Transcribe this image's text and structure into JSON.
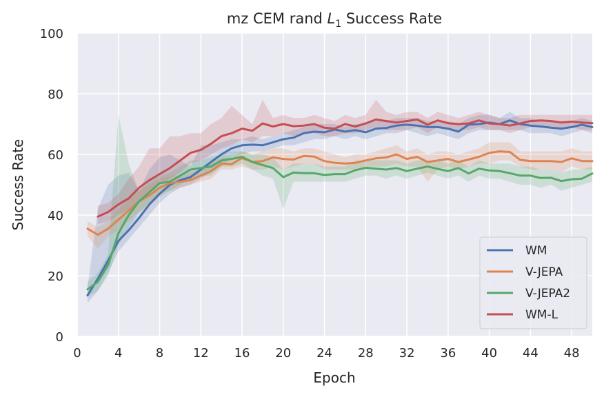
{
  "chart_data": {
    "type": "line",
    "title": "mz CEM rand L1 Success Rate",
    "title_parts": {
      "prefix": "mz CEM rand ",
      "var": "L",
      "sub": "1",
      "suffix": " Success Rate"
    },
    "xlabel": "Epoch",
    "ylabel": "Success Rate",
    "xlim": [
      0,
      50
    ],
    "ylim": [
      0,
      100
    ],
    "xticks": [
      0,
      4,
      8,
      12,
      16,
      20,
      24,
      28,
      32,
      36,
      40,
      44,
      48
    ],
    "xtick_labels": [
      "0",
      "4",
      "8",
      "12",
      "16",
      "20",
      "24",
      "28",
      "32",
      "36",
      "40",
      "44",
      "48"
    ],
    "yticks": [
      0,
      20,
      40,
      60,
      80,
      100
    ],
    "ytick_labels": [
      "0",
      "20",
      "40",
      "60",
      "80",
      "100"
    ],
    "grid": true,
    "background": "#eaeaf2",
    "legend_position": "bottom-right",
    "series": [
      {
        "name": "WM",
        "color": "#4c72b0",
        "x": [
          1,
          2,
          3,
          4,
          5,
          6,
          7,
          8,
          9,
          10,
          11,
          12,
          13,
          14,
          15,
          16,
          17,
          18,
          19,
          20,
          21,
          22,
          23,
          24,
          25,
          26,
          27,
          28,
          29,
          30,
          31,
          32,
          33,
          34,
          35,
          36,
          37,
          38,
          39,
          40,
          41,
          42,
          43,
          44,
          45,
          46,
          47,
          48,
          49,
          50
        ],
        "y": [
          13.5,
          19,
          25,
          31.5,
          35,
          39,
          43.5,
          47,
          50,
          51.5,
          52.5,
          55,
          57.5,
          60,
          62,
          63,
          63.2,
          63,
          64,
          65,
          65.5,
          67,
          67.5,
          67.3,
          68.2,
          67.5,
          68,
          67.3,
          68.5,
          68.7,
          69.5,
          69.8,
          69.5,
          69,
          69,
          68.5,
          67.5,
          69.8,
          70,
          70.5,
          70,
          71.2,
          70,
          69.5,
          69.2,
          68.8,
          68.5,
          69,
          69.8,
          69
        ],
        "band_lo": [
          11,
          15,
          21,
          28,
          32,
          36,
          40,
          44,
          47,
          49,
          50,
          52,
          54,
          56,
          59,
          60,
          61,
          61,
          62,
          63,
          63,
          64,
          65,
          65,
          66,
          65,
          66,
          65,
          66,
          67,
          67,
          68,
          67,
          66,
          67,
          66,
          65,
          67,
          68,
          68,
          68,
          68,
          68,
          67,
          67,
          67,
          66,
          67,
          68,
          67
        ],
        "band_hi": [
          16,
          42,
          50,
          53,
          54,
          48,
          55,
          59,
          60,
          58,
          56,
          63,
          63,
          64,
          65,
          65,
          66,
          65,
          66,
          67,
          68,
          69,
          70,
          70,
          70,
          69,
          70,
          70,
          71,
          71,
          72,
          72,
          72,
          71,
          71,
          71,
          70,
          72,
          73,
          73,
          72,
          74,
          72,
          72,
          71,
          71,
          71,
          71,
          72,
          71
        ]
      },
      {
        "name": "V-JEPA",
        "color": "#dd8452",
        "x": [
          1,
          2,
          3,
          4,
          5,
          6,
          7,
          8,
          9,
          10,
          11,
          12,
          13,
          14,
          15,
          16,
          17,
          18,
          19,
          20,
          21,
          22,
          23,
          24,
          25,
          26,
          27,
          28,
          29,
          30,
          31,
          32,
          33,
          34,
          35,
          36,
          37,
          38,
          39,
          40,
          41,
          42,
          43,
          44,
          45,
          46,
          47,
          48,
          49,
          50
        ],
        "y": [
          35.5,
          33.5,
          35.5,
          38.5,
          41.5,
          44.5,
          46.5,
          49,
          50.5,
          51,
          51.5,
          53,
          54.5,
          57,
          56.8,
          58.8,
          57.5,
          57.8,
          59,
          58.5,
          58.3,
          59.5,
          59.3,
          57.8,
          57.2,
          57,
          57.2,
          58,
          58.7,
          59,
          60,
          58.5,
          59.2,
          57.5,
          58,
          58.5,
          57.5,
          58.3,
          59.2,
          60.5,
          61,
          60.8,
          58.2,
          57.8,
          57.8,
          57.8,
          57.5,
          58.7,
          57.8,
          57.8
        ],
        "band_lo": [
          33,
          29,
          33,
          35,
          38,
          41,
          43,
          46,
          48,
          49,
          50,
          51,
          52,
          55,
          55,
          56,
          55,
          55,
          56,
          55,
          56,
          57,
          57,
          55,
          55,
          55,
          55,
          56,
          56,
          56,
          57,
          56,
          56,
          51,
          55,
          56,
          55,
          56,
          57,
          57,
          58,
          58,
          56,
          55,
          55,
          55,
          54,
          56,
          55,
          55
        ],
        "band_hi": [
          38,
          36,
          38,
          42,
          45,
          48,
          50,
          52,
          53,
          53,
          54,
          55,
          57,
          59,
          59,
          61,
          60,
          61,
          62,
          62,
          61,
          62,
          62,
          61,
          60,
          59,
          60,
          60,
          61,
          62,
          63,
          61,
          62,
          60,
          61,
          61,
          60,
          61,
          62,
          64,
          64,
          64,
          61,
          61,
          61,
          61,
          61,
          62,
          61,
          61
        ]
      },
      {
        "name": "V-JEPA2",
        "color": "#55a868",
        "x": [
          1,
          2,
          3,
          4,
          5,
          6,
          7,
          8,
          9,
          10,
          11,
          12,
          13,
          14,
          15,
          16,
          17,
          18,
          19,
          20,
          21,
          22,
          23,
          24,
          25,
          26,
          27,
          28,
          29,
          30,
          31,
          32,
          33,
          34,
          35,
          36,
          37,
          38,
          39,
          40,
          41,
          42,
          43,
          44,
          45,
          46,
          47,
          48,
          49,
          50
        ],
        "y": [
          15.5,
          18,
          23.5,
          34,
          40,
          44.5,
          47.5,
          50.5,
          51,
          53,
          55,
          55.5,
          56,
          58,
          58.5,
          59.2,
          57.5,
          56.5,
          55.5,
          52.5,
          54,
          53.8,
          53.8,
          53.2,
          53.5,
          53.5,
          54.8,
          55.6,
          55.3,
          55,
          55.5,
          54.5,
          55.3,
          56,
          55.2,
          54.5,
          55.5,
          53.7,
          55.3,
          54.7,
          54.5,
          53.8,
          53,
          53,
          52.2,
          52.3,
          51.2,
          51.8,
          52,
          53.7
        ],
        "band_lo": [
          13,
          15,
          20,
          30,
          36,
          41,
          44,
          47,
          48,
          50,
          52,
          53,
          53,
          56,
          56,
          57,
          55,
          53,
          52,
          42,
          51,
          51,
          51,
          51,
          51,
          51,
          52,
          53,
          53,
          52,
          53,
          52,
          53,
          54,
          53,
          52,
          53,
          51,
          53,
          52,
          52,
          51,
          50,
          50,
          49,
          50,
          48,
          49,
          50,
          51
        ],
        "band_hi": [
          18,
          21,
          27,
          73,
          57,
          48,
          51,
          53,
          54,
          56,
          58,
          58,
          59,
          60,
          61,
          61,
          60,
          60,
          59,
          55,
          57,
          57,
          57,
          56,
          56,
          56,
          58,
          58,
          58,
          58,
          58,
          57,
          58,
          58,
          58,
          57,
          58,
          56,
          58,
          57,
          57,
          57,
          56,
          56,
          55,
          55,
          54,
          55,
          55,
          56
        ]
      },
      {
        "name": "WM-L",
        "color": "#c44e52",
        "x": [
          2,
          3,
          4,
          5,
          6,
          7,
          8,
          9,
          10,
          11,
          12,
          13,
          14,
          15,
          16,
          17,
          18,
          19,
          20,
          21,
          22,
          23,
          24,
          25,
          26,
          27,
          28,
          29,
          30,
          31,
          32,
          33,
          34,
          35,
          36,
          37,
          38,
          39,
          40,
          41,
          42,
          43,
          44,
          45,
          46,
          47,
          48,
          49,
          50
        ],
        "y": [
          39.5,
          41,
          43.5,
          45.5,
          49,
          51.5,
          53.5,
          55.5,
          58,
          60.5,
          61.5,
          63.5,
          66,
          67,
          68.5,
          67.8,
          70.2,
          69.2,
          70,
          69.3,
          69.5,
          70,
          68.8,
          68.5,
          70,
          69.2,
          70.2,
          71.5,
          71,
          70.5,
          71,
          71.5,
          69.8,
          71.2,
          70.3,
          70,
          70.2,
          71.2,
          70.2,
          70,
          69.5,
          70.2,
          71,
          71.2,
          71,
          70.5,
          70.8,
          70.5,
          70.3
        ],
        "band_lo": [
          37,
          38,
          40,
          42,
          45,
          48,
          50,
          52,
          54,
          57,
          58,
          60,
          62,
          63,
          65,
          64,
          66,
          66,
          67,
          66,
          67,
          67,
          66,
          66,
          67,
          67,
          68,
          69,
          68,
          68,
          68,
          69,
          67,
          69,
          68,
          68,
          68,
          69,
          68,
          68,
          67,
          68,
          69,
          69,
          69,
          68,
          69,
          68,
          68
        ],
        "band_hi": [
          43,
          44,
          47,
          52,
          56,
          62,
          62,
          66,
          66,
          67,
          67,
          70,
          72,
          76,
          73,
          70,
          78,
          72,
          73,
          72,
          72,
          73,
          72,
          71,
          73,
          72,
          73,
          78,
          74,
          73,
          74,
          74,
          72,
          74,
          73,
          72,
          73,
          74,
          73,
          72,
          72,
          73,
          73,
          73,
          73,
          73,
          73,
          73,
          73
        ]
      }
    ]
  }
}
